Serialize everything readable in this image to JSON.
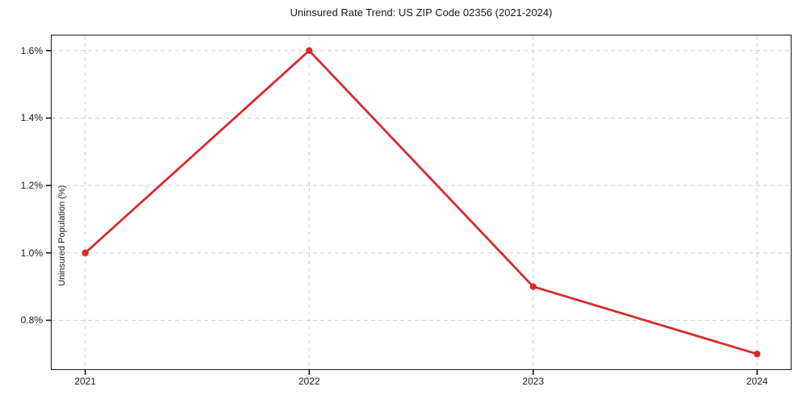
{
  "colors": {
    "line": "#d62b2e",
    "marker": "#d62b2e",
    "grid": "#cfcfcf",
    "axis": "#151515",
    "text": "#1a1a1a",
    "background": "#ffffff"
  },
  "chart_data": {
    "type": "line",
    "title": "Uninsured Rate Trend: US ZIP Code 02356 (2021-2024)",
    "xlabel": "",
    "ylabel": "Uninsured Population (%)",
    "x": [
      2021,
      2022,
      2023,
      2024
    ],
    "values": [
      1.0,
      1.6,
      0.9,
      0.7
    ],
    "value_labels": [
      "1.0%",
      "1.6%",
      "0.9%",
      "0.7%"
    ],
    "xlim": [
      2020.85,
      2024.15
    ],
    "ylim": [
      0.655,
      1.645
    ],
    "xticks": [
      {
        "value": 2021,
        "label": "2021"
      },
      {
        "value": 2022,
        "label": "2022"
      },
      {
        "value": 2023,
        "label": "2023"
      },
      {
        "value": 2024,
        "label": "2024"
      }
    ],
    "yticks": [
      {
        "value": 1.6,
        "label": "1.6%"
      },
      {
        "value": 1.4,
        "label": "1.4%"
      },
      {
        "value": 1.2,
        "label": "1.2%"
      },
      {
        "value": 1.0,
        "label": "1.0%"
      },
      {
        "value": 0.8,
        "label": "0.8%"
      }
    ],
    "grid": true,
    "grid_style": "dashed",
    "legend": "none",
    "marker": "circle",
    "marker_radius": 4.2
  }
}
